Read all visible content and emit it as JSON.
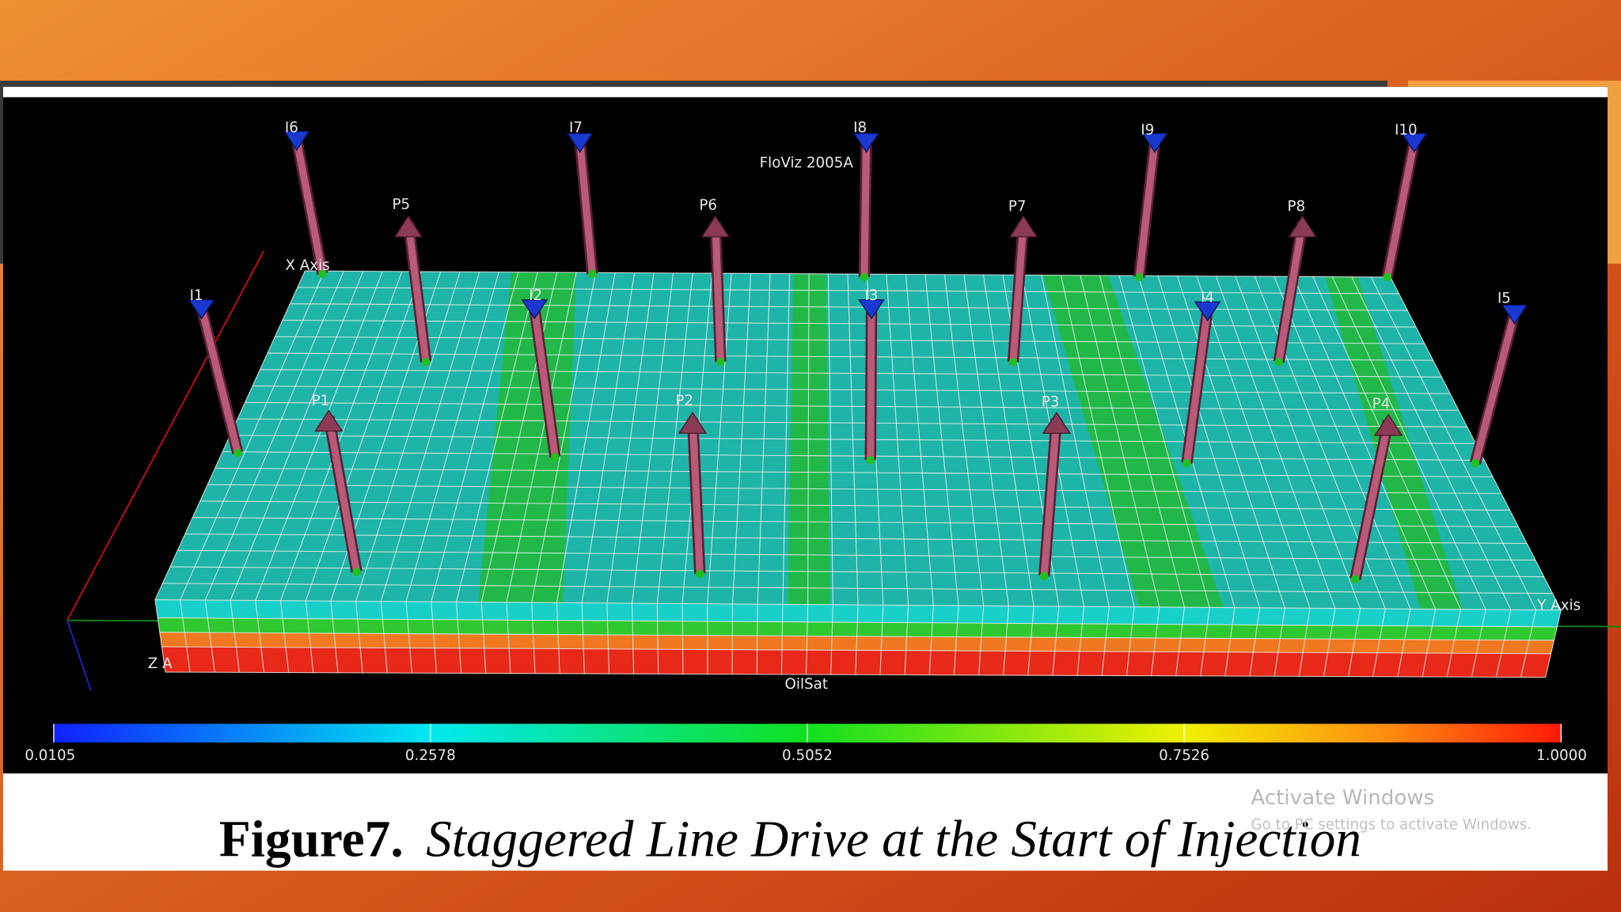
{
  "viewer": {
    "watermark": "FloViz 2005A",
    "axes": {
      "x": "X Axis",
      "y": "Y Axis",
      "z": "Z A"
    },
    "wells": [
      "I6",
      "I7",
      "I8",
      "I9",
      "I10",
      "P5",
      "P6",
      "P7",
      "P8",
      "I1",
      "I2",
      "I3",
      "I4",
      "I5",
      "P1",
      "P2",
      "P3",
      "P4"
    ],
    "property": "OilSat",
    "colorbar": {
      "lim": [
        0.0105,
        1.0
      ],
      "ticks": [
        0.0105,
        0.2578,
        0.5052,
        0.7526,
        {
          "value": 1.0,
          "label": "1.0000"
        }
      ]
    }
  },
  "caption": {
    "label": "Figure7.",
    "text": "Staggered Line Drive at the Start of Injection"
  },
  "os_watermark": {
    "title": "Activate Windows",
    "subtitle": "Go to PC settings to activate Windows."
  }
}
